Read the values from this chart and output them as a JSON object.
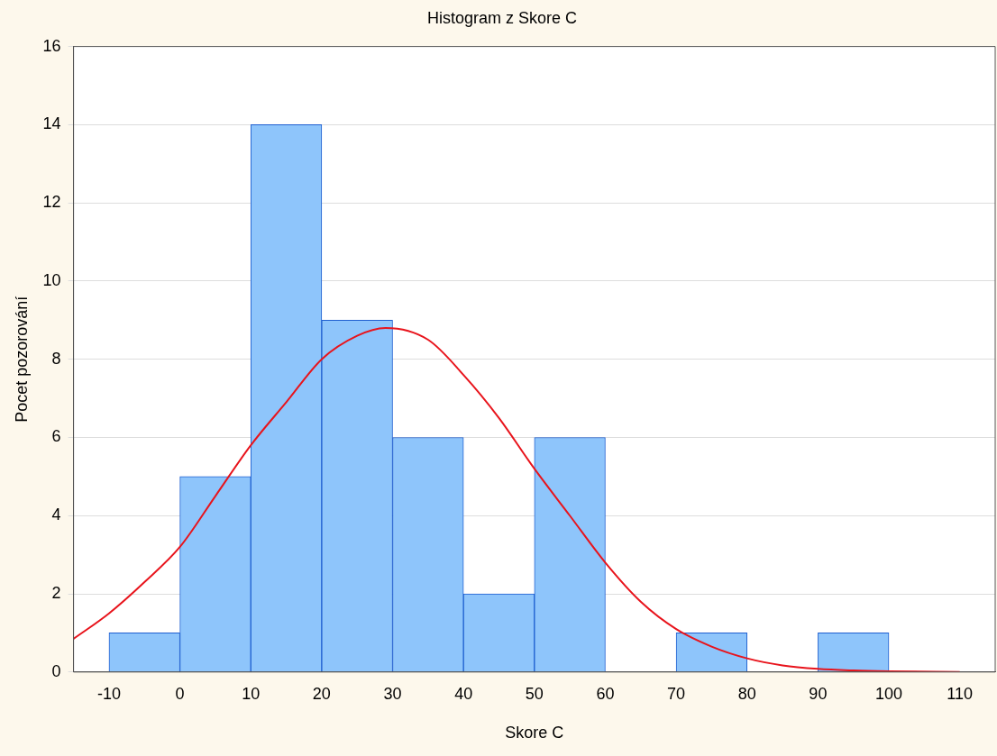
{
  "chart_data": {
    "type": "histogram",
    "title": "Histogram z Skore C",
    "xlabel": "Skore C",
    "ylabel": "Pocet pozorování",
    "bins": [
      -10,
      0,
      10,
      20,
      30,
      40,
      50,
      60,
      70,
      80,
      90,
      100
    ],
    "values": [
      1,
      5,
      14,
      9,
      6,
      2,
      6,
      0,
      1,
      0,
      1
    ],
    "color": "#8ec5fb",
    "series": [
      {
        "type": "line",
        "color": "#e8141c",
        "x": [
          -15,
          -10,
          -5,
          0,
          5,
          10,
          15,
          20,
          25,
          29,
          35,
          40,
          45,
          50,
          55,
          60,
          65,
          70,
          75,
          80,
          85,
          90,
          95,
          100,
          110
        ],
        "values": [
          0.85,
          1.5,
          2.3,
          3.2,
          4.5,
          5.8,
          6.9,
          8.0,
          8.6,
          8.8,
          8.5,
          7.6,
          6.5,
          5.2,
          4.0,
          2.8,
          1.8,
          1.1,
          0.65,
          0.35,
          0.17,
          0.08,
          0.04,
          0.02,
          0
        ]
      }
    ],
    "xlim": [
      -15,
      115
    ],
    "xticks": [
      -10,
      0,
      10,
      20,
      30,
      40,
      50,
      60,
      70,
      80,
      90,
      100,
      110
    ],
    "ylim": [
      0,
      16
    ],
    "yticks": [
      0,
      2,
      4,
      6,
      8,
      10,
      12,
      14,
      16
    ],
    "grid": "y",
    "legend": false,
    "marker": "none"
  }
}
